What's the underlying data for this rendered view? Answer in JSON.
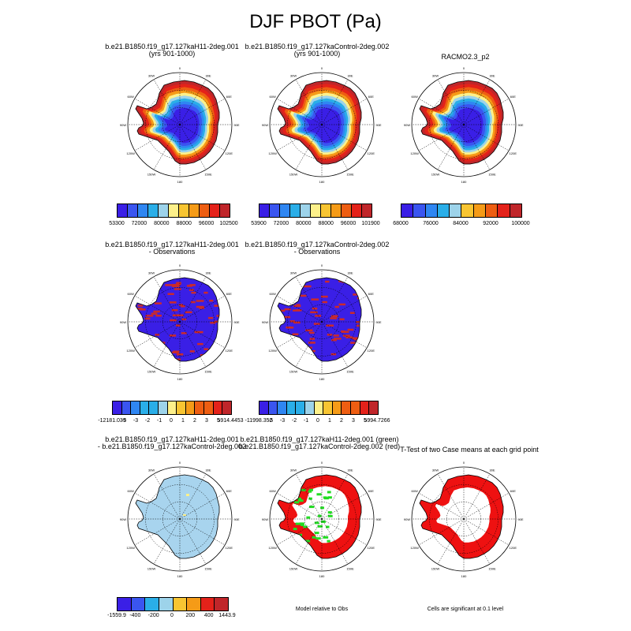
{
  "title": "DJF PBOT (Pa)",
  "lon_labels": [
    "0",
    "30E",
    "60E",
    "90E",
    "120E",
    "150E",
    "180",
    "150W",
    "120W",
    "90W",
    "60W",
    "30W"
  ],
  "colors": {
    "scale": [
      "#3a1fe6",
      "#3a55f0",
      "#2f86f2",
      "#2aaee8",
      "#9dd3ea",
      "#fdf08a",
      "#f8c532",
      "#f59b17",
      "#ee5e12",
      "#e4221a",
      "#c0262a"
    ],
    "ocean": "#ffffff",
    "coast": "#000000",
    "diff_land": "#a8d4ee",
    "rank_green": "#22dd22",
    "rank_red": "#ee1111",
    "obs_blue": "#3a1fe6",
    "obs_red": "#cc2a2a"
  },
  "panels": [
    {
      "id": "p1",
      "title1": "b.e21.B1850.f19_g17.127kaH11-2deg.001",
      "title2": "(yrs 901-1000)",
      "kind": "field",
      "colorbar": {
        "n": 11,
        "labels": [
          "53300",
          "72000",
          "80000",
          "88000",
          "96000",
          "102500"
        ]
      }
    },
    {
      "id": "p2",
      "title1": "b.e21.B1850.f19_g17.127kaControl-2deg.002",
      "title2": "(yrs 901-1000)",
      "kind": "field",
      "colorbar": {
        "n": 11,
        "labels": [
          "53900",
          "72000",
          "80000",
          "88000",
          "96000",
          "101900"
        ]
      }
    },
    {
      "id": "p3",
      "title1": "RACMO2.3_p2",
      "title2": "",
      "kind": "field",
      "colorbar": {
        "n": 10,
        "labels": [
          "68000",
          "76000",
          "84000",
          "92000",
          "100000"
        ]
      }
    },
    {
      "id": "p4",
      "title1": "b.e21.B1850.f19_g17.127kaH11-2deg.001",
      "title2": "- Observations",
      "kind": "obsdiff",
      "colorbar": {
        "n": 13,
        "labels": [
          "-12181.039",
          "-5",
          "-3",
          "-2",
          "-1",
          "0",
          "1",
          "2",
          "3",
          "5",
          "5914.4453"
        ]
      }
    },
    {
      "id": "p5",
      "title1": "b.e21.B1850.f19_g17.127kaControl-2deg.002",
      "title2": "- Observations",
      "kind": "obsdiff",
      "colorbar": {
        "n": 13,
        "labels": [
          "-11998.352",
          "-5",
          "-3",
          "-2",
          "-1",
          "0",
          "1",
          "2",
          "3",
          "5",
          "5994.7266"
        ]
      }
    },
    {
      "id": "p7",
      "title1": "b.e21.B1850.f19_g17.127kaH11-2deg.001",
      "title2": "- b.e21.B1850.f19_g17.127kaControl-2deg.002",
      "kind": "diff",
      "colorbar": {
        "n": 8,
        "labels": [
          "-1559.9",
          "-400",
          "-200",
          "0",
          "200",
          "400",
          "1443.9"
        ]
      }
    },
    {
      "id": "p8",
      "title1": "b.e21.B1850.f19_g17.127kaH11-2deg.001 (green)",
      "title2": "b.e21.B1850.f19_g17.127kaControl-2deg.002 (red)",
      "kind": "rank",
      "note": "Model relative to Obs"
    },
    {
      "id": "p9",
      "title1": "T-Test of two Case means at each grid point",
      "title2": "",
      "kind": "ttest",
      "note": "Cells are significant at 0.1 level"
    }
  ]
}
